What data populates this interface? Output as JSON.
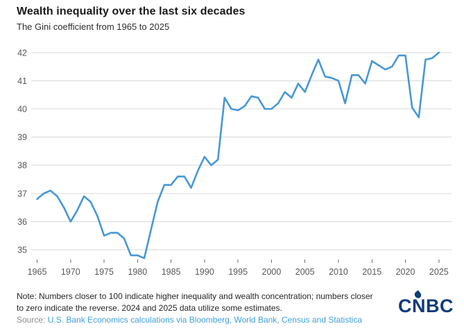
{
  "header": {
    "title": "Wealth inequality over the last six decades",
    "subtitle": "The Gini coefficient from 1965 to 2025"
  },
  "chart_data": {
    "type": "line",
    "title": "Wealth inequality over the last six decades",
    "subtitle": "The Gini coefficient from 1965 to 2025",
    "series_name": "Gini coefficient",
    "x": [
      1965,
      1966,
      1967,
      1968,
      1969,
      1970,
      1971,
      1972,
      1973,
      1974,
      1975,
      1976,
      1977,
      1978,
      1979,
      1980,
      1981,
      1982,
      1983,
      1984,
      1985,
      1986,
      1987,
      1988,
      1989,
      1990,
      1991,
      1992,
      1993,
      1994,
      1995,
      1996,
      1997,
      1998,
      1999,
      2000,
      2001,
      2002,
      2003,
      2004,
      2005,
      2006,
      2007,
      2008,
      2009,
      2010,
      2011,
      2012,
      2013,
      2014,
      2015,
      2016,
      2017,
      2018,
      2019,
      2020,
      2021,
      2022,
      2023,
      2024,
      2025
    ],
    "values": [
      36.8,
      37.0,
      37.1,
      36.9,
      36.5,
      36.0,
      36.4,
      36.9,
      36.7,
      36.2,
      35.5,
      35.6,
      35.6,
      35.4,
      34.8,
      34.8,
      34.7,
      35.7,
      36.7,
      37.3,
      37.3,
      37.6,
      37.6,
      37.2,
      37.8,
      38.3,
      38.0,
      38.2,
      40.4,
      40.0,
      39.95,
      40.1,
      40.45,
      40.4,
      40.0,
      40.0,
      40.2,
      40.6,
      40.4,
      40.9,
      40.6,
      41.2,
      41.75,
      41.15,
      41.1,
      41.0,
      40.2,
      41.2,
      41.2,
      40.9,
      41.7,
      41.55,
      41.4,
      41.5,
      41.9,
      41.9,
      40.05,
      39.7,
      41.75,
      41.8,
      42.0
    ],
    "xlabel": "",
    "ylabel": "",
    "ylim": [
      35,
      42
    ],
    "yticks": [
      35,
      36,
      37,
      38,
      39,
      40,
      41,
      42
    ],
    "xticks": [
      1965,
      1970,
      1975,
      1980,
      1985,
      1990,
      1995,
      2000,
      2005,
      2010,
      2015,
      2020,
      2025
    ],
    "grid": "horizontal",
    "legend": "none",
    "line_color": "#4897d6"
  },
  "footer": {
    "note_line1": "Note: Numbers closer to 100 indicate higher inequality and wealth concentration; numbers closer",
    "note_line2": "to zero indicate the reverse. 2024 and 2025 data utilize some estimates.",
    "source_label": "Source: ",
    "source_text": "U.S. Bank Economics calculations via Bloomberg, World Bank, Census and Statistica",
    "logo_text": "CNBC"
  },
  "colors": {
    "line": "#4897d6",
    "gridline": "#d7d7d7",
    "axis_text": "#58585a",
    "title_text": "#1a1a1a",
    "note_text": "#262626",
    "source_label": "#8b8b8b",
    "source_link": "#42a0dc",
    "logo_navy": "#0d3c78",
    "background": "#ffffff"
  }
}
